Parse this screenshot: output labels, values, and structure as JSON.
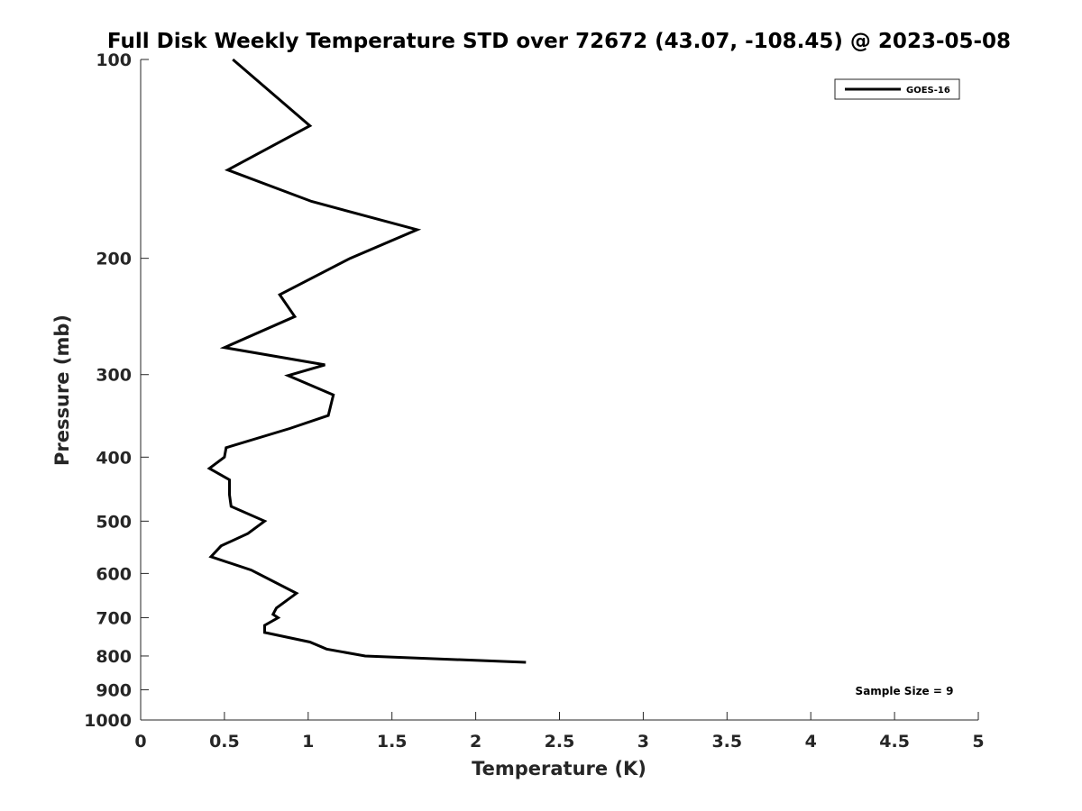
{
  "chart_data": {
    "type": "line",
    "title": "Full Disk Weekly Temperature STD over 72672 (43.07, -108.45) @ 2023-05-08",
    "xlabel": "Temperature (K)",
    "ylabel": "Pressure (mb)",
    "xlim": [
      0,
      5
    ],
    "ylim": [
      1000,
      100
    ],
    "y_scale": "log",
    "y_reversed": true,
    "grid": false,
    "legend_position": "top-right",
    "x_ticks": [
      "0",
      "0.5",
      "1",
      "1.5",
      "2",
      "2.5",
      "3",
      "3.5",
      "4",
      "4.5",
      "5"
    ],
    "y_ticks": [
      "100",
      "200",
      "300",
      "400",
      "500",
      "600",
      "700",
      "800",
      "900",
      "1000"
    ],
    "series": [
      {
        "name": "GOES-16",
        "color": "#000000",
        "points": [
          {
            "x": 0.55,
            "y": 100
          },
          {
            "x": 1.01,
            "y": 126
          },
          {
            "x": 0.52,
            "y": 147
          },
          {
            "x": 1.02,
            "y": 164
          },
          {
            "x": 1.65,
            "y": 181
          },
          {
            "x": 1.25,
            "y": 200
          },
          {
            "x": 0.83,
            "y": 227
          },
          {
            "x": 0.92,
            "y": 245
          },
          {
            "x": 0.5,
            "y": 273
          },
          {
            "x": 1.1,
            "y": 290
          },
          {
            "x": 0.88,
            "y": 301
          },
          {
            "x": 1.15,
            "y": 322
          },
          {
            "x": 1.12,
            "y": 346
          },
          {
            "x": 0.89,
            "y": 362
          },
          {
            "x": 0.51,
            "y": 387
          },
          {
            "x": 0.5,
            "y": 400
          },
          {
            "x": 0.41,
            "y": 416
          },
          {
            "x": 0.53,
            "y": 433
          },
          {
            "x": 0.53,
            "y": 456
          },
          {
            "x": 0.54,
            "y": 475
          },
          {
            "x": 0.74,
            "y": 500
          },
          {
            "x": 0.64,
            "y": 522
          },
          {
            "x": 0.48,
            "y": 545
          },
          {
            "x": 0.42,
            "y": 566
          },
          {
            "x": 0.66,
            "y": 593
          },
          {
            "x": 0.93,
            "y": 643
          },
          {
            "x": 0.81,
            "y": 677
          },
          {
            "x": 0.79,
            "y": 692
          },
          {
            "x": 0.82,
            "y": 700
          },
          {
            "x": 0.74,
            "y": 719
          },
          {
            "x": 0.74,
            "y": 737
          },
          {
            "x": 1.01,
            "y": 762
          },
          {
            "x": 1.11,
            "y": 781
          },
          {
            "x": 1.34,
            "y": 800
          },
          {
            "x": 2.3,
            "y": 818
          }
        ]
      }
    ],
    "annotations": [
      "Sample Size = 9"
    ]
  }
}
